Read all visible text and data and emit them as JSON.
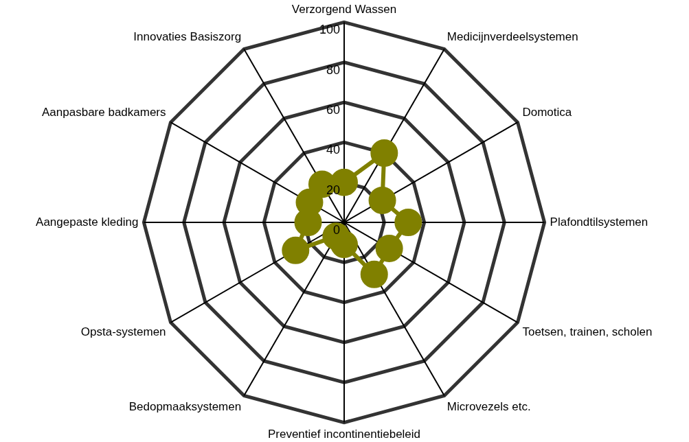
{
  "chart_data": {
    "type": "radar",
    "categories": [
      "Verzorgend Wassen",
      "Medicijnverdeelsystemen",
      "Domotica",
      "Plafondtilsystemen",
      "Toetsen, trainen, scholen",
      "Microvezels etc.",
      "Preventief incontinentiebeleid",
      "Bedopmaaksystemen",
      "Opsta-systemen",
      "Aangepaste kleding",
      "Aanpasbare badkamers",
      "Innovaties Basiszorg"
    ],
    "series": [
      {
        "color": "#808000",
        "values": [
          20,
          40,
          22,
          32,
          26,
          30,
          11,
          8,
          28,
          18,
          20,
          22
        ]
      }
    ],
    "ylim": [
      0,
      100
    ],
    "yticks": [
      0,
      20,
      40,
      60,
      80,
      100
    ],
    "grid": true,
    "legend": false,
    "marker": "circle",
    "line_style": "solid"
  }
}
